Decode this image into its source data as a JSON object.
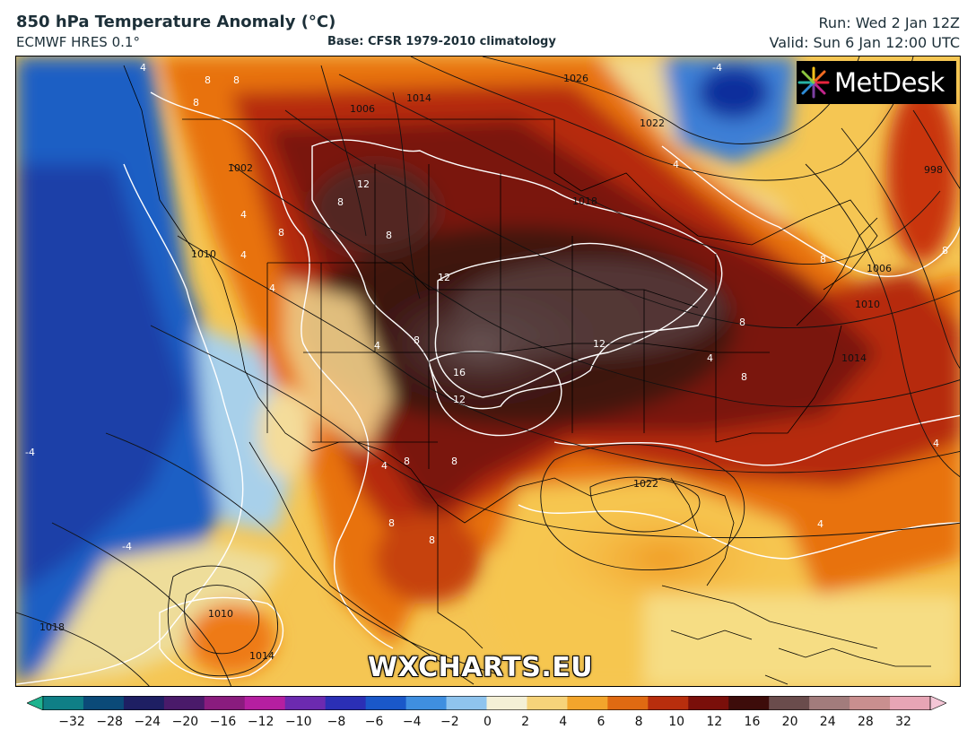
{
  "header": {
    "title": "850 hPa Temperature Anomaly (°C)",
    "model": "ECMWF HRES 0.1°",
    "base": "Base: CFSR 1979-2010 climatology",
    "run": "Run: Wed 2 Jan 12Z",
    "valid": "Valid: Sun 6 Jan 12:00 UTC"
  },
  "brand": {
    "name": "MetDesk"
  },
  "watermark": "WXCHARTS.EU",
  "map": {
    "isobar_labels": [
      "1026",
      "1022",
      "1014",
      "1006",
      "1002",
      "1010",
      "1018",
      "1006",
      "1010",
      "1014",
      "1022",
      "1018",
      "1010",
      "1014",
      "998"
    ],
    "anomaly_labels": [
      "4",
      "8",
      "8",
      "8",
      "12",
      "8",
      "4",
      "4",
      "8",
      "8",
      "12",
      "12",
      "16",
      "12",
      "8",
      "4",
      "4",
      "8",
      "8",
      "8",
      "8",
      "4",
      "4",
      "8",
      "-4",
      "-4",
      "-4",
      "4",
      "8",
      "8",
      "8",
      "4",
      "4"
    ]
  },
  "colorbar": {
    "ticks": [
      "−32",
      "−28",
      "−24",
      "−20",
      "−16",
      "−12",
      "−10",
      "−8",
      "−6",
      "−4",
      "−2",
      "0",
      "2",
      "4",
      "6",
      "8",
      "10",
      "12",
      "16",
      "20",
      "24",
      "28",
      "32"
    ],
    "colors": [
      "#1fb38f",
      "#0f7f86",
      "#0b4a78",
      "#1e1f63",
      "#4a1a6a",
      "#8a1c7e",
      "#b51fa1",
      "#6c2ab0",
      "#2b2fb5",
      "#1a58c9",
      "#3f8fe0",
      "#8fc4ee",
      "#f4f0d6",
      "#f6d37a",
      "#f2a52c",
      "#e06a12",
      "#b82e0d",
      "#7a0f0a",
      "#3d0c0a",
      "#6a4c4c",
      "#a27c7c",
      "#c98f8f",
      "#e7a5b5",
      "#f4c6d6"
    ]
  }
}
